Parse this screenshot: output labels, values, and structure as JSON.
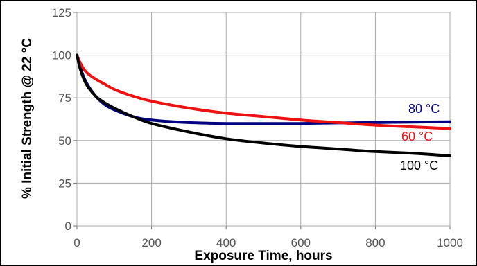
{
  "chart_data": {
    "type": "line",
    "xlabel": "Exposure Time, hours",
    "ylabel": "% Initial Strength @ 22 °C",
    "xlim": [
      0,
      1000
    ],
    "ylim": [
      0,
      125
    ],
    "xticks": [
      "0",
      "200",
      "400",
      "600",
      "800",
      "1000"
    ],
    "yticks": [
      "0",
      "25",
      "50",
      "75",
      "100",
      "125"
    ],
    "grid": true,
    "series": [
      {
        "name": "80 °C",
        "color": "#000080",
        "x": [
          0,
          10,
          25,
          50,
          75,
          100,
          150,
          200,
          300,
          400,
          500,
          600,
          700,
          800,
          900,
          1000
        ],
        "y": [
          100,
          92,
          84,
          76,
          71,
          68,
          64,
          62,
          60.5,
          60,
          60,
          60,
          60.3,
          60.5,
          60.8,
          61
        ]
      },
      {
        "name": "60 °C",
        "color": "#ee1111",
        "x": [
          0,
          10,
          25,
          50,
          75,
          100,
          150,
          200,
          300,
          400,
          500,
          600,
          700,
          800,
          900,
          1000
        ],
        "y": [
          100,
          95,
          90,
          86,
          83,
          80,
          76,
          73,
          69,
          66,
          64,
          62,
          60.5,
          59,
          58,
          57
        ]
      },
      {
        "name": "100 °C",
        "color": "#000000",
        "x": [
          0,
          10,
          25,
          50,
          75,
          100,
          150,
          200,
          300,
          400,
          500,
          600,
          700,
          800,
          900,
          1000
        ],
        "y": [
          100,
          91,
          83,
          76,
          72,
          69,
          64,
          60,
          55,
          51,
          48.5,
          46.5,
          45,
          43.5,
          42.5,
          41
        ]
      }
    ]
  }
}
